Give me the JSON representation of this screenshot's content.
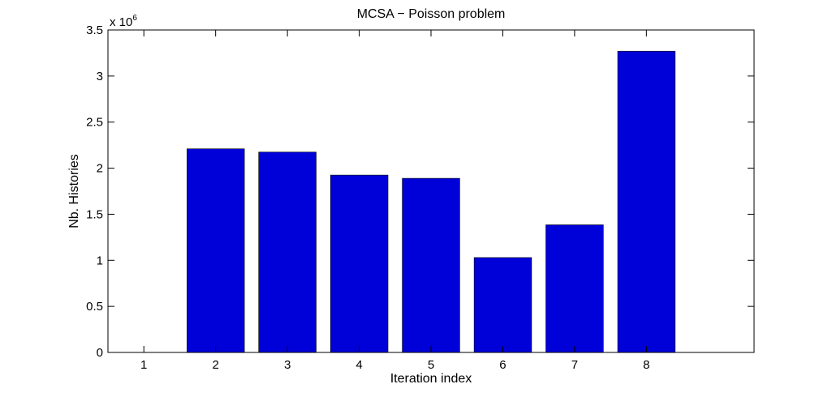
{
  "chart_data": {
    "type": "bar",
    "title": "MCSA − Poisson problem",
    "xlabel": "Iteration index",
    "ylabel": "Nb. Histories",
    "y_multiplier_base": "x 10",
    "y_multiplier_exponent": "6",
    "categories": [
      "1",
      "2",
      "3",
      "4",
      "5",
      "6",
      "7",
      "8"
    ],
    "values": [
      0,
      2210000,
      2175000,
      1925000,
      1890000,
      1030000,
      1385000,
      3270000
    ],
    "ylim": [
      0,
      3500000
    ],
    "yticks": [
      0,
      500000,
      1000000,
      1500000,
      2000000,
      2500000,
      3000000,
      3500000
    ],
    "ytick_labels": [
      "0",
      "0.5",
      "1",
      "1.5",
      "2",
      "2.5",
      "3",
      "3.5"
    ],
    "bar_color": "#0000d9",
    "grid": false,
    "legend": "none"
  }
}
